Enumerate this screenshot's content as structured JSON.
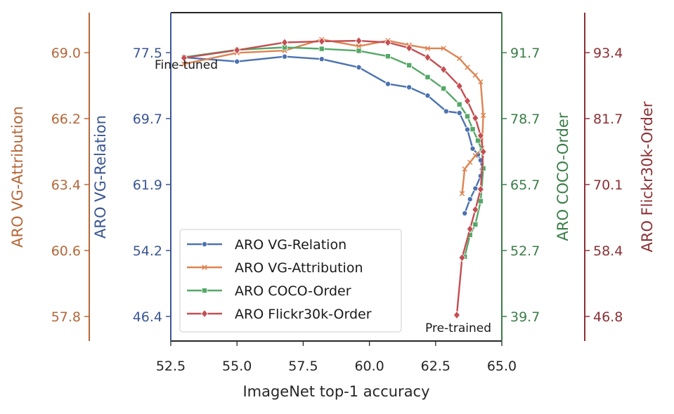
{
  "chart_data": {
    "type": "line",
    "xlabel": "ImageNet top-1 accuracy",
    "xlim": [
      52.5,
      65.0
    ],
    "xticks": [
      "52.5",
      "55.0",
      "57.5",
      "60.0",
      "62.5",
      "65.0"
    ],
    "axes": [
      {
        "key": "attr",
        "label": "ARO VG-Attribution",
        "color": "#b5683a",
        "ticks": [
          "69.0",
          "66.2",
          "63.4",
          "60.6",
          "57.8"
        ],
        "ylim": [
          56.6,
          71.3
        ]
      },
      {
        "key": "rel",
        "label": "ARO VG-Relation",
        "color": "#3c5693",
        "ticks": [
          "77.5",
          "69.7",
          "61.9",
          "54.2",
          "46.4"
        ],
        "ylim": [
          43.3,
          82.9
        ]
      },
      {
        "key": "coco",
        "label": "ARO COCO-Order",
        "color": "#3b7d48",
        "ticks": [
          "91.7",
          "78.7",
          "65.7",
          "52.7",
          "39.7"
        ],
        "ylim": [
          34.5,
          100.7
        ]
      },
      {
        "key": "flickr",
        "label": "ARO Flickr30k-Order",
        "color": "#8b3034",
        "ticks": [
          "93.4",
          "81.7",
          "70.1",
          "58.4",
          "46.8"
        ],
        "ylim": [
          42.1,
          101.6
        ]
      }
    ],
    "series": [
      {
        "name": "ARO VG-Relation",
        "axis": "rel",
        "color": "#4c72b0",
        "marker": "circle",
        "points": [
          [
            53.0,
            77.5
          ],
          [
            55.0,
            77.0
          ],
          [
            56.8,
            77.6
          ],
          [
            58.2,
            77.3
          ],
          [
            59.6,
            76.3
          ],
          [
            60.7,
            74.3
          ],
          [
            61.5,
            73.9
          ],
          [
            62.2,
            72.9
          ],
          [
            62.9,
            71.0
          ],
          [
            63.4,
            70.8
          ],
          [
            63.7,
            68.8
          ],
          [
            63.9,
            66.5
          ],
          [
            64.1,
            65.8
          ],
          [
            64.2,
            65.1
          ],
          [
            64.25,
            64.0
          ],
          [
            64.2,
            63.2
          ],
          [
            64.0,
            61.7
          ],
          [
            63.8,
            60.4
          ],
          [
            63.6,
            58.7
          ]
        ]
      },
      {
        "name": "ARO VG-Attribution",
        "axis": "attr",
        "color": "#dd8452",
        "marker": "x",
        "points": [
          [
            53.0,
            69.0
          ],
          [
            55.0,
            69.5
          ],
          [
            56.8,
            69.6
          ],
          [
            58.2,
            70.1
          ],
          [
            59.6,
            69.8
          ],
          [
            60.7,
            70.05
          ],
          [
            61.5,
            69.85
          ],
          [
            62.2,
            69.7
          ],
          [
            62.8,
            69.7
          ],
          [
            63.4,
            69.25
          ],
          [
            63.7,
            68.85
          ],
          [
            64.0,
            68.5
          ],
          [
            64.2,
            68.2
          ],
          [
            64.3,
            66.7
          ],
          [
            64.25,
            65.2
          ],
          [
            64.0,
            64.9
          ],
          [
            63.8,
            64.6
          ],
          [
            63.6,
            64.3
          ],
          [
            63.5,
            63.2
          ]
        ]
      },
      {
        "name": "ARO COCO-Order",
        "axis": "coco",
        "color": "#55a868",
        "marker": "square",
        "points": [
          [
            53.0,
            91.7
          ],
          [
            55.0,
            93.2
          ],
          [
            56.8,
            93.7
          ],
          [
            58.2,
            93.4
          ],
          [
            59.6,
            93.0
          ],
          [
            60.7,
            91.9
          ],
          [
            61.5,
            90.1
          ],
          [
            62.2,
            87.7
          ],
          [
            62.8,
            85.4
          ],
          [
            63.4,
            82.2
          ],
          [
            63.7,
            79.8
          ],
          [
            63.9,
            77.2
          ],
          [
            64.1,
            74.9
          ],
          [
            64.25,
            72.9
          ],
          [
            64.3,
            69.3
          ],
          [
            64.2,
            62.7
          ],
          [
            64.0,
            58.0
          ],
          [
            63.8,
            55.9
          ],
          [
            63.6,
            51.5
          ]
        ]
      },
      {
        "name": "ARO Flickr30k-Order",
        "axis": "flickr",
        "color": "#c44e52",
        "marker": "diamond",
        "points": [
          [
            53.0,
            93.4
          ],
          [
            55.0,
            94.8
          ],
          [
            56.8,
            96.2
          ],
          [
            58.2,
            96.4
          ],
          [
            59.6,
            96.5
          ],
          [
            60.7,
            96.2
          ],
          [
            61.5,
            95.2
          ],
          [
            62.2,
            93.5
          ],
          [
            62.8,
            91.3
          ],
          [
            63.4,
            88.3
          ],
          [
            63.7,
            85.6
          ],
          [
            64.0,
            82.5
          ],
          [
            64.2,
            79.3
          ],
          [
            64.3,
            76.4
          ],
          [
            64.2,
            69.6
          ],
          [
            64.0,
            65.9
          ],
          [
            63.8,
            62.4
          ],
          [
            63.5,
            57.2
          ],
          [
            63.3,
            46.8
          ]
        ]
      }
    ],
    "annotations": [
      "Fine-tuned",
      "Pre-trained"
    ],
    "legend": "lower-left",
    "grid": false
  }
}
